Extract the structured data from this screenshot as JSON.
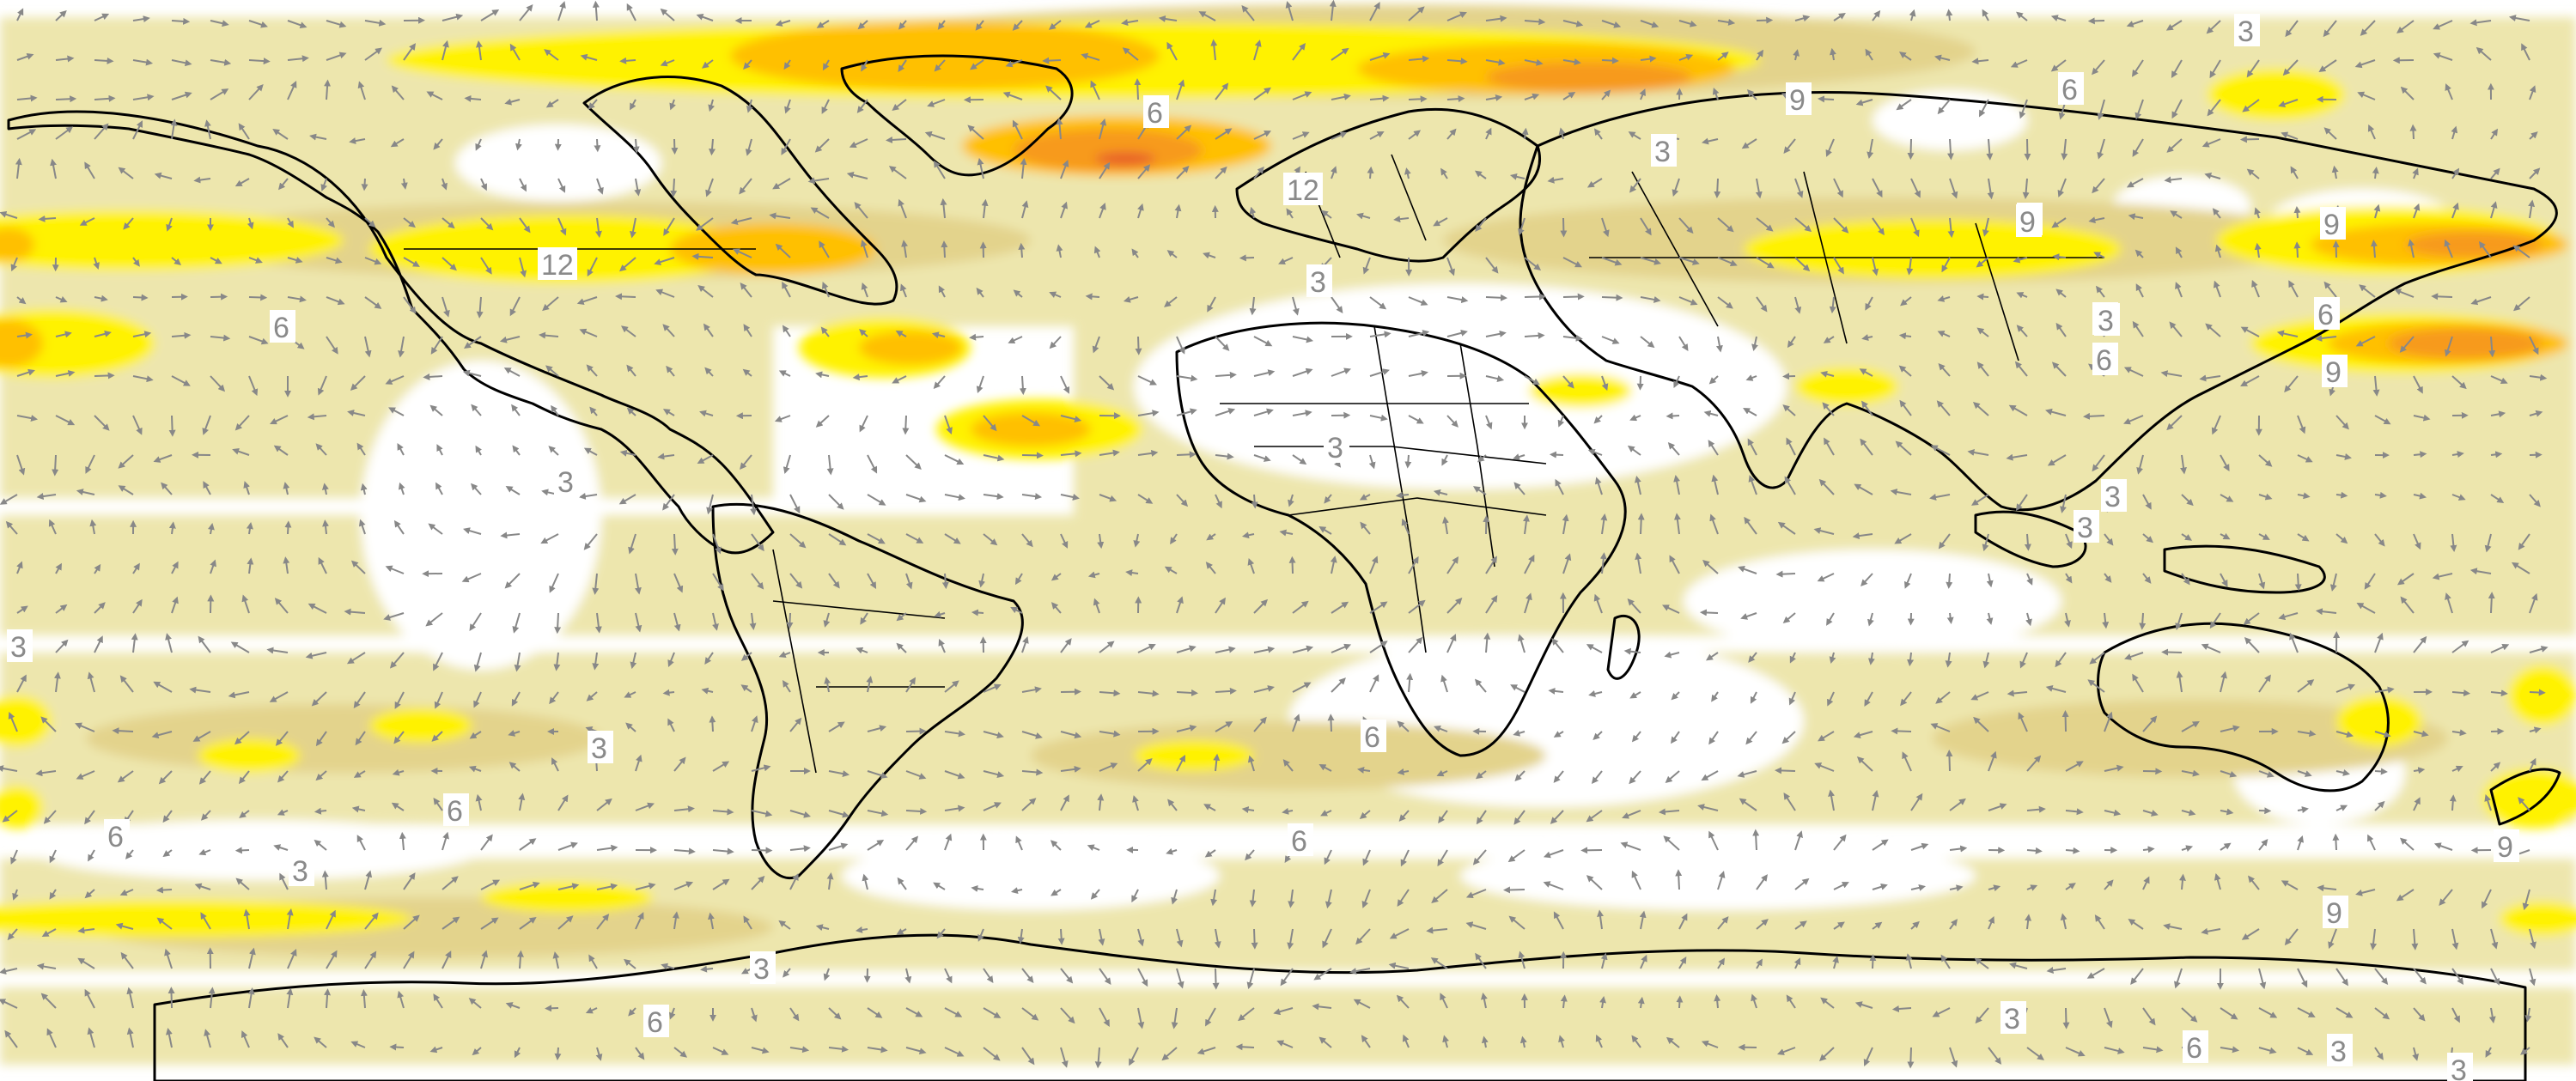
{
  "map": {
    "type": "wind-speed-anomaly-map",
    "projection": "equirectangular",
    "shading_colors": [
      "#ffffff",
      "#ede6ad",
      "#e3d38c",
      "#fff200",
      "#ffc000",
      "#f79a1e",
      "#e8602c"
    ],
    "vector_color": "#888888",
    "coastline_color": "#000000",
    "contour_labels": [
      {
        "text": "3"
      },
      {
        "text": "6"
      },
      {
        "text": "9"
      },
      {
        "text": "3"
      },
      {
        "text": "6"
      },
      {
        "text": "9"
      },
      {
        "text": "3"
      },
      {
        "text": "12"
      },
      {
        "text": "12"
      },
      {
        "text": "6"
      },
      {
        "text": "3"
      },
      {
        "text": "9"
      },
      {
        "text": "9"
      },
      {
        "text": "3"
      },
      {
        "text": "6"
      },
      {
        "text": "9"
      },
      {
        "text": "6"
      },
      {
        "text": "3"
      },
      {
        "text": "3"
      },
      {
        "text": "3"
      },
      {
        "text": "3"
      },
      {
        "text": "3"
      },
      {
        "text": "6"
      },
      {
        "text": "3"
      },
      {
        "text": "6"
      },
      {
        "text": "6"
      },
      {
        "text": "3"
      },
      {
        "text": "6"
      },
      {
        "text": "9"
      },
      {
        "text": "9"
      },
      {
        "text": "3"
      },
      {
        "text": "6"
      },
      {
        "text": "3"
      },
      {
        "text": "6"
      },
      {
        "text": "3"
      },
      {
        "text": "3"
      }
    ]
  }
}
